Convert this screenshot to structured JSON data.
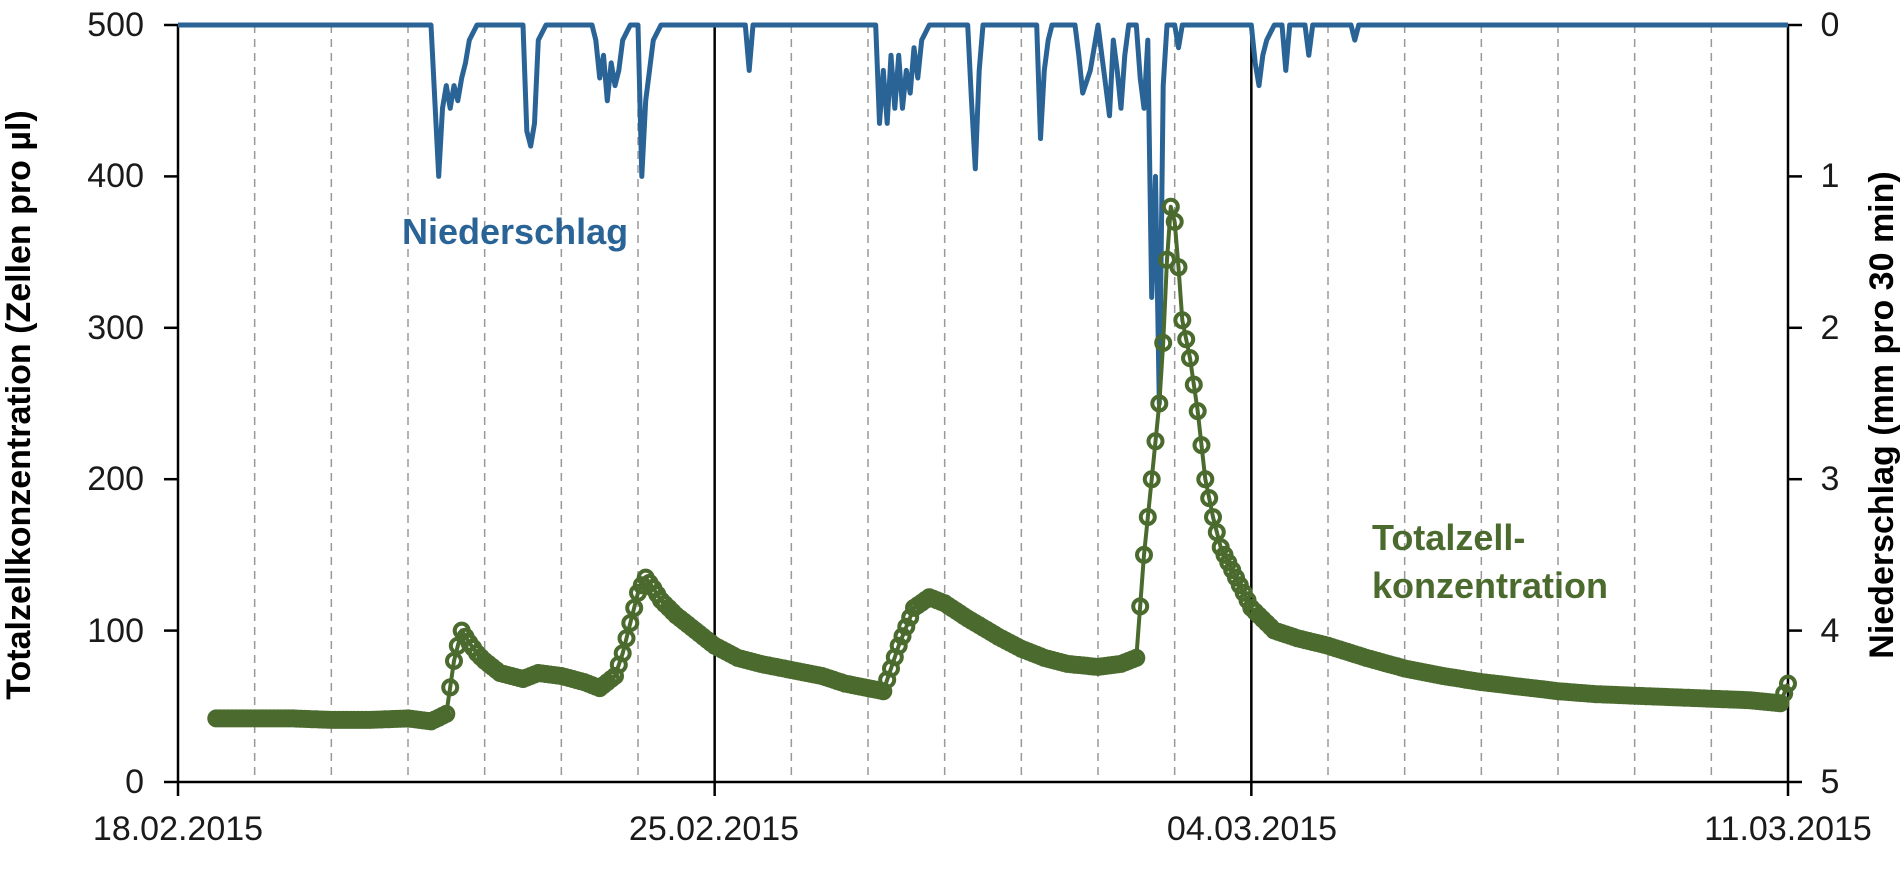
{
  "chart_data": {
    "type": "line",
    "x_axis": {
      "unit": "days",
      "range_labels": [
        "18.02.2015",
        "11.03.2015"
      ],
      "tick_labels": [
        "18.02.2015",
        "25.02.2015",
        "04.03.2015",
        "11.03.2015"
      ],
      "tick_days": [
        0,
        7,
        14,
        21
      ],
      "minor_gridlines_per_day": true
    },
    "y_left": {
      "label": "Totalzellkonzentration (Zellen pro µl)",
      "ylim": [
        0,
        500
      ],
      "ticks": [
        "0",
        "100",
        "200",
        "300",
        "400",
        "500"
      ],
      "tick_values": [
        0,
        100,
        200,
        300,
        400,
        500
      ]
    },
    "y_right": {
      "label": "Niederschlag (mm pro 30 min)",
      "ylim": [
        0,
        5
      ],
      "inverted": true,
      "ticks": [
        "0",
        "1",
        "2",
        "3",
        "4",
        "5"
      ],
      "tick_values": [
        0,
        1,
        2,
        3,
        4,
        5
      ]
    },
    "series": [
      {
        "name": "Niederschlag",
        "axis": "right",
        "style": "line",
        "color": "#2a6496",
        "x": [
          0,
          3.3,
          3.4,
          3.45,
          3.5,
          3.55,
          3.6,
          3.65,
          3.7,
          3.75,
          3.8,
          3.9,
          4.5,
          4.55,
          4.6,
          4.65,
          4.7,
          4.8,
          5.4,
          5.45,
          5.5,
          5.55,
          5.6,
          5.65,
          5.7,
          5.75,
          5.8,
          5.9,
          6.0,
          6.05,
          6.1,
          6.15,
          6.2,
          6.3,
          7.4,
          7.45,
          7.5,
          9.1,
          9.15,
          9.2,
          9.25,
          9.3,
          9.35,
          9.4,
          9.45,
          9.5,
          9.55,
          9.6,
          9.65,
          9.7,
          9.75,
          9.8,
          9.9,
          10.3,
          10.35,
          10.4,
          10.45,
          10.5,
          10.6,
          11.2,
          11.25,
          11.3,
          11.35,
          11.4,
          11.5,
          11.7,
          11.75,
          11.8,
          11.9,
          12.0,
          12.05,
          12.1,
          12.15,
          12.2,
          12.25,
          12.3,
          12.35,
          12.4,
          12.5,
          12.55,
          12.6,
          12.65,
          12.7,
          12.75,
          12.8,
          12.85,
          12.9,
          13.0,
          13.05,
          13.1,
          13.2,
          14.0,
          14.05,
          14.1,
          14.15,
          14.2,
          14.3,
          14.4,
          14.45,
          14.5,
          14.6,
          14.7,
          14.75,
          14.8,
          14.9,
          15.3,
          15.35,
          15.4,
          21
        ],
        "values": [
          0,
          0,
          1.0,
          0.55,
          0.4,
          0.55,
          0.4,
          0.5,
          0.35,
          0.25,
          0.1,
          0,
          0,
          0.7,
          0.8,
          0.65,
          0.1,
          0,
          0,
          0.1,
          0.35,
          0.2,
          0.5,
          0.25,
          0.4,
          0.3,
          0.1,
          0,
          0,
          1.0,
          0.5,
          0.3,
          0.1,
          0,
          0,
          0.3,
          0,
          0,
          0.65,
          0.3,
          0.65,
          0.2,
          0.55,
          0.2,
          0.55,
          0.3,
          0.45,
          0.15,
          0.35,
          0.1,
          0.05,
          0,
          0,
          0,
          0.5,
          0.95,
          0.3,
          0,
          0,
          0,
          0.75,
          0.3,
          0.1,
          0,
          0,
          0,
          0.2,
          0.45,
          0.3,
          0,
          0.2,
          0.4,
          0.6,
          0.1,
          0.3,
          0.55,
          0.2,
          0,
          0,
          0.35,
          0.55,
          0.1,
          1.8,
          1.0,
          2.5,
          0.4,
          0,
          0,
          0.15,
          0,
          0,
          0,
          0.25,
          0.4,
          0.2,
          0.1,
          0,
          0,
          0.3,
          0,
          0,
          0,
          0.2,
          0,
          0,
          0,
          0.1,
          0,
          0
        ]
      },
      {
        "name": "Totalzell-\nkonzentration",
        "name_lines": [
          "Totalzell-",
          "konzentration"
        ],
        "axis": "left",
        "style": "line+markers",
        "color": "#4a6a2e",
        "x": [
          0.5,
          1.0,
          1.5,
          2.0,
          2.5,
          3.0,
          3.3,
          3.5,
          3.6,
          3.7,
          3.8,
          3.9,
          4.0,
          4.2,
          4.5,
          4.7,
          5.0,
          5.3,
          5.5,
          5.7,
          5.8,
          5.9,
          6.0,
          6.1,
          6.2,
          6.3,
          6.5,
          6.8,
          7.0,
          7.3,
          7.6,
          8.0,
          8.4,
          8.7,
          9.0,
          9.2,
          9.4,
          9.6,
          9.8,
          10.0,
          10.3,
          10.7,
          11.0,
          11.3,
          11.6,
          12.0,
          12.3,
          12.5,
          12.6,
          12.7,
          12.8,
          12.85,
          12.9,
          12.95,
          13.0,
          13.05,
          13.1,
          13.2,
          13.3,
          13.4,
          13.5,
          13.6,
          13.8,
          14.0,
          14.3,
          14.6,
          15.0,
          15.5,
          16.0,
          16.5,
          17.0,
          17.5,
          18.0,
          18.5,
          19.0,
          19.5,
          20.0,
          20.5,
          20.9,
          21.0
        ],
        "values": [
          42,
          42,
          42,
          41,
          41,
          42,
          40,
          45,
          80,
          100,
          92,
          85,
          80,
          72,
          68,
          72,
          70,
          66,
          62,
          70,
          85,
          105,
          125,
          135,
          128,
          120,
          110,
          98,
          90,
          82,
          78,
          74,
          70,
          65,
          62,
          60,
          90,
          115,
          122,
          118,
          108,
          96,
          88,
          82,
          78,
          76,
          78,
          82,
          150,
          200,
          250,
          290,
          345,
          380,
          370,
          340,
          305,
          280,
          245,
          200,
          175,
          155,
          135,
          115,
          100,
          95,
          90,
          82,
          75,
          70,
          66,
          63,
          60,
          58,
          57,
          56,
          55,
          54,
          52,
          65
        ]
      }
    ],
    "legend": "inline-labels"
  }
}
